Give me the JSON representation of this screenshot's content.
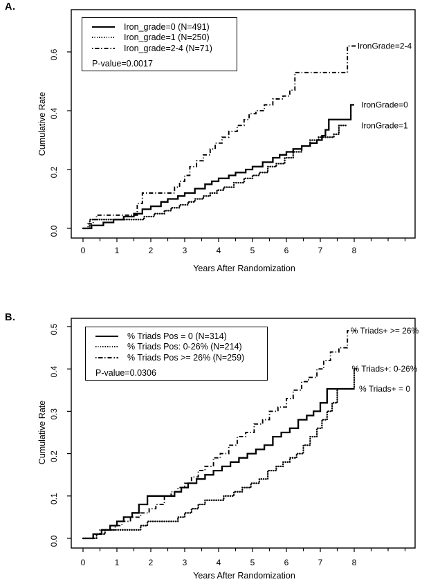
{
  "page": {
    "panel_a_letter": "A.",
    "panel_b_letter": "B."
  },
  "chart_data": [
    {
      "id": "A",
      "type": "line",
      "subtype": "step-cumulative-incidence",
      "xlabel": "Years After Randomization",
      "ylabel": "Cumulative Rate",
      "xlim": [
        -0.35,
        9.8
      ],
      "ylim": [
        0,
        0.66
      ],
      "x_ticks": [
        0,
        1,
        2,
        3,
        4,
        5,
        6,
        7,
        8
      ],
      "x_minor_ticks": [
        0.5,
        1.5,
        2.5,
        3.5,
        4.5,
        5.5,
        6.5,
        7.5,
        8.5,
        9,
        9.5
      ],
      "y_ticks": [
        0.0,
        0.2,
        0.4,
        0.6
      ],
      "y_tick_labels": [
        "0.0",
        "0.2",
        "0.4",
        "0.6"
      ],
      "grid": false,
      "legend_position": "top-left-inset",
      "p_value_label": "P-value=0.0017",
      "line_color": "#000000",
      "series": [
        {
          "name": "iron-grade-0",
          "legend_label": "Iron_grade=0 (N=491)",
          "style": "solid",
          "annotation": "IronGrade=0",
          "points": [
            [
              0,
              0
            ],
            [
              0.25,
              0.01
            ],
            [
              0.6,
              0.02
            ],
            [
              0.9,
              0.03
            ],
            [
              1.2,
              0.04
            ],
            [
              1.5,
              0.05
            ],
            [
              1.75,
              0.065
            ],
            [
              2.0,
              0.075
            ],
            [
              2.3,
              0.09
            ],
            [
              2.5,
              0.1
            ],
            [
              2.8,
              0.11
            ],
            [
              3.0,
              0.12
            ],
            [
              3.3,
              0.135
            ],
            [
              3.6,
              0.15
            ],
            [
              3.8,
              0.16
            ],
            [
              4.0,
              0.17
            ],
            [
              4.3,
              0.18
            ],
            [
              4.5,
              0.19
            ],
            [
              4.8,
              0.2
            ],
            [
              5.0,
              0.21
            ],
            [
              5.3,
              0.225
            ],
            [
              5.6,
              0.24
            ],
            [
              5.8,
              0.25
            ],
            [
              6.0,
              0.26
            ],
            [
              6.2,
              0.27
            ],
            [
              6.45,
              0.28
            ],
            [
              6.7,
              0.29
            ],
            [
              6.9,
              0.3
            ],
            [
              7.05,
              0.315
            ],
            [
              7.15,
              0.335
            ],
            [
              7.25,
              0.37
            ],
            [
              7.9,
              0.42
            ],
            [
              8.0,
              0.42
            ]
          ]
        },
        {
          "name": "iron-grade-1",
          "legend_label": "Iron_grade=1 (N=250)",
          "style": "dotted",
          "annotation": "IronGrade=1",
          "points": [
            [
              0,
              0
            ],
            [
              0.2,
              0.03
            ],
            [
              1.55,
              0.03
            ],
            [
              1.8,
              0.04
            ],
            [
              2.1,
              0.05
            ],
            [
              2.4,
              0.06
            ],
            [
              2.6,
              0.07
            ],
            [
              2.85,
              0.08
            ],
            [
              3.1,
              0.09
            ],
            [
              3.3,
              0.1
            ],
            [
              3.55,
              0.11
            ],
            [
              3.75,
              0.12
            ],
            [
              3.95,
              0.13
            ],
            [
              4.15,
              0.14
            ],
            [
              4.45,
              0.155
            ],
            [
              4.75,
              0.17
            ],
            [
              5.0,
              0.18
            ],
            [
              5.2,
              0.19
            ],
            [
              5.45,
              0.21
            ],
            [
              5.7,
              0.22
            ],
            [
              5.95,
              0.24
            ],
            [
              6.2,
              0.26
            ],
            [
              6.45,
              0.28
            ],
            [
              6.7,
              0.3
            ],
            [
              6.95,
              0.31
            ],
            [
              7.4,
              0.32
            ],
            [
              7.55,
              0.35
            ],
            [
              7.75,
              0.35
            ]
          ]
        },
        {
          "name": "iron-grade-2-4",
          "legend_label": "Iron_grade=2-4 (N=71)",
          "style": "dashdot",
          "annotation": "IronGrade=2-4",
          "points": [
            [
              0,
              0
            ],
            [
              0.15,
              0.015
            ],
            [
              0.3,
              0.03
            ],
            [
              0.4,
              0.045
            ],
            [
              1.5,
              0.045
            ],
            [
              1.6,
              0.085
            ],
            [
              1.75,
              0.12
            ],
            [
              2.55,
              0.12
            ],
            [
              2.7,
              0.14
            ],
            [
              2.85,
              0.16
            ],
            [
              3.0,
              0.18
            ],
            [
              3.15,
              0.21
            ],
            [
              3.35,
              0.23
            ],
            [
              3.55,
              0.25
            ],
            [
              3.75,
              0.27
            ],
            [
              3.9,
              0.29
            ],
            [
              4.1,
              0.31
            ],
            [
              4.3,
              0.33
            ],
            [
              4.55,
              0.35
            ],
            [
              4.75,
              0.37
            ],
            [
              4.9,
              0.39
            ],
            [
              5.1,
              0.4
            ],
            [
              5.35,
              0.42
            ],
            [
              5.6,
              0.44
            ],
            [
              5.9,
              0.45
            ],
            [
              6.1,
              0.47
            ],
            [
              6.25,
              0.53
            ],
            [
              7.75,
              0.53
            ],
            [
              7.8,
              0.62
            ],
            [
              8.05,
              0.62
            ]
          ]
        }
      ]
    },
    {
      "id": "B",
      "type": "line",
      "subtype": "step-cumulative-incidence",
      "xlabel": "Years After Randomization",
      "ylabel": "Cumulative Rate",
      "xlim": [
        -0.35,
        9.8
      ],
      "ylim": [
        0,
        0.52
      ],
      "x_ticks": [
        0,
        1,
        2,
        3,
        4,
        5,
        6,
        7,
        8
      ],
      "x_minor_ticks": [
        0.5,
        1.5,
        2.5,
        3.5,
        4.5,
        5.5,
        6.5,
        7.5,
        8.5,
        9,
        9.5
      ],
      "y_ticks": [
        0.0,
        0.1,
        0.2,
        0.3,
        0.4,
        0.5
      ],
      "y_tick_labels": [
        "0.0",
        "0.1",
        "0.2",
        "0.3",
        "0.4",
        "0.5"
      ],
      "grid": false,
      "legend_position": "top-left-inset",
      "p_value_label": "P-value=0.0306",
      "line_color": "#000000",
      "series": [
        {
          "name": "triads-pos-0",
          "legend_label": "% Triads Pos = 0 (N=314)",
          "style": "solid",
          "annotation": "% Triads+ = 0",
          "points": [
            [
              0,
              0
            ],
            [
              0.3,
              0.01
            ],
            [
              0.55,
              0.02
            ],
            [
              0.8,
              0.03
            ],
            [
              1.0,
              0.04
            ],
            [
              1.2,
              0.05
            ],
            [
              1.45,
              0.06
            ],
            [
              1.65,
              0.08
            ],
            [
              1.9,
              0.1
            ],
            [
              2.55,
              0.1
            ],
            [
              2.7,
              0.11
            ],
            [
              2.9,
              0.12
            ],
            [
              3.1,
              0.13
            ],
            [
              3.35,
              0.14
            ],
            [
              3.6,
              0.15
            ],
            [
              3.85,
              0.16
            ],
            [
              4.1,
              0.17
            ],
            [
              4.35,
              0.18
            ],
            [
              4.6,
              0.19
            ],
            [
              4.85,
              0.2
            ],
            [
              5.1,
              0.21
            ],
            [
              5.35,
              0.22
            ],
            [
              5.6,
              0.24
            ],
            [
              5.85,
              0.25
            ],
            [
              6.1,
              0.26
            ],
            [
              6.35,
              0.28
            ],
            [
              6.6,
              0.29
            ],
            [
              6.8,
              0.3
            ],
            [
              7.0,
              0.32
            ],
            [
              7.2,
              0.353
            ],
            [
              8.0,
              0.353
            ]
          ]
        },
        {
          "name": "triads-pos-0-26",
          "legend_label": "% Triads Pos: 0-26% (N=214)",
          "style": "dotted",
          "annotation": "% Triads+: 0-26%",
          "points": [
            [
              0,
              0
            ],
            [
              0.4,
              0.01
            ],
            [
              0.65,
              0.02
            ],
            [
              1.5,
              0.02
            ],
            [
              1.7,
              0.03
            ],
            [
              1.9,
              0.04
            ],
            [
              2.6,
              0.04
            ],
            [
              2.8,
              0.05
            ],
            [
              3.0,
              0.06
            ],
            [
              3.2,
              0.07
            ],
            [
              3.4,
              0.08
            ],
            [
              3.6,
              0.09
            ],
            [
              4.15,
              0.1
            ],
            [
              4.45,
              0.11
            ],
            [
              4.7,
              0.12
            ],
            [
              4.95,
              0.13
            ],
            [
              5.2,
              0.14
            ],
            [
              5.45,
              0.16
            ],
            [
              5.7,
              0.17
            ],
            [
              5.9,
              0.18
            ],
            [
              6.1,
              0.19
            ],
            [
              6.3,
              0.2
            ],
            [
              6.5,
              0.22
            ],
            [
              6.7,
              0.24
            ],
            [
              6.9,
              0.26
            ],
            [
              7.05,
              0.28
            ],
            [
              7.2,
              0.3
            ],
            [
              7.35,
              0.32
            ],
            [
              7.5,
              0.353
            ],
            [
              7.95,
              0.353
            ],
            [
              8.0,
              0.4
            ],
            [
              8.07,
              0.4
            ]
          ]
        },
        {
          "name": "triads-pos-ge-26",
          "legend_label": "% Triads Pos >= 26% (N=259)",
          "style": "dashdot",
          "annotation": "% Triads+ >= 26%",
          "points": [
            [
              0,
              0
            ],
            [
              0.3,
              0.01
            ],
            [
              0.5,
              0.02
            ],
            [
              0.95,
              0.03
            ],
            [
              1.15,
              0.04
            ],
            [
              1.4,
              0.05
            ],
            [
              1.7,
              0.06
            ],
            [
              1.95,
              0.07
            ],
            [
              2.15,
              0.08
            ],
            [
              2.4,
              0.1
            ],
            [
              2.6,
              0.11
            ],
            [
              2.8,
              0.12
            ],
            [
              3.0,
              0.13
            ],
            [
              3.2,
              0.145
            ],
            [
              3.4,
              0.16
            ],
            [
              3.6,
              0.17
            ],
            [
              3.85,
              0.19
            ],
            [
              4.05,
              0.2
            ],
            [
              4.3,
              0.22
            ],
            [
              4.55,
              0.24
            ],
            [
              4.8,
              0.25
            ],
            [
              5.05,
              0.27
            ],
            [
              5.3,
              0.28
            ],
            [
              5.5,
              0.3
            ],
            [
              5.75,
              0.31
            ],
            [
              6.0,
              0.33
            ],
            [
              6.2,
              0.35
            ],
            [
              6.45,
              0.37
            ],
            [
              6.65,
              0.38
            ],
            [
              6.9,
              0.4
            ],
            [
              7.1,
              0.42
            ],
            [
              7.3,
              0.44
            ],
            [
              7.55,
              0.45
            ],
            [
              7.8,
              0.49
            ],
            [
              8.05,
              0.49
            ]
          ]
        }
      ]
    }
  ]
}
